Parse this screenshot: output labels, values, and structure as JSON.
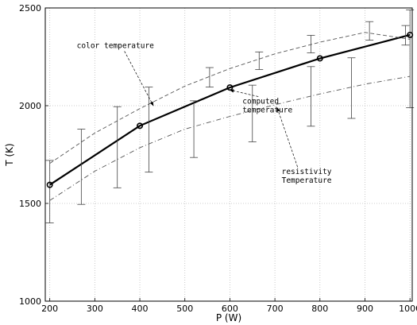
{
  "chart_data": {
    "type": "line",
    "title": "",
    "xlabel": "P (W)",
    "ylabel": "T (K)",
    "xlim": [
      190,
      1005
    ],
    "ylim": [
      1000,
      2500
    ],
    "xticks": [
      200,
      300,
      400,
      500,
      600,
      700,
      800,
      900,
      1000
    ],
    "yticks": [
      1000,
      1500,
      2000,
      2500
    ],
    "grid": true,
    "series": [
      {
        "name": "computed temperature",
        "style": "solid-thick-circles",
        "x": [
          200,
          400,
          600,
          800,
          1000
        ],
        "y": [
          1595,
          1897,
          2093,
          2242,
          2362
        ]
      },
      {
        "name": "color temperature",
        "style": "dashed",
        "x": [
          200,
          300,
          400,
          500,
          600,
          700,
          800,
          900,
          1000
        ],
        "y": [
          1705,
          1860,
          1985,
          2100,
          2190,
          2265,
          2325,
          2375,
          2340
        ]
      },
      {
        "name": "resistivity Temperature",
        "style": "dash-dot",
        "x": [
          200,
          300,
          400,
          500,
          600,
          700,
          800,
          900,
          1000
        ],
        "y": [
          1515,
          1665,
          1785,
          1880,
          1945,
          2005,
          2060,
          2110,
          2150
        ]
      }
    ],
    "error_bars": [
      {
        "x": 200,
        "low": 1400,
        "high": 1720
      },
      {
        "x": 270,
        "low": 1495,
        "high": 1880
      },
      {
        "x": 350,
        "low": 1580,
        "high": 1995
      },
      {
        "x": 420,
        "low": 1660,
        "high": 2095
      },
      {
        "x": 520,
        "low": 1735,
        "high": 2025
      },
      {
        "x": 555,
        "low": 2095,
        "high": 2195
      },
      {
        "x": 650,
        "low": 1815,
        "high": 2105
      },
      {
        "x": 665,
        "low": 2185,
        "high": 2275
      },
      {
        "x": 780,
        "low": 1895,
        "high": 2200
      },
      {
        "x": 780,
        "low": 2270,
        "high": 2360
      },
      {
        "x": 870,
        "low": 1935,
        "high": 2245
      },
      {
        "x": 910,
        "low": 2335,
        "high": 2430
      },
      {
        "x": 990,
        "low": 2310,
        "high": 2410
      },
      {
        "x": 1000,
        "low": 1990,
        "high": 2490
      }
    ],
    "annotations": [
      {
        "text": "color temperature",
        "lines": [
          "color temperature"
        ],
        "x": 260,
        "y": 2295,
        "arrow_to": [
          430,
          2000
        ]
      },
      {
        "text": "computed temperature",
        "lines": [
          "computed",
          "temperature"
        ],
        "x": 628,
        "y": 2010,
        "arrow_to": [
          600,
          2080
        ]
      },
      {
        "text": "resistivity Temperature",
        "lines": [
          "resistivity",
          "Temperature"
        ],
        "x": 715,
        "y": 1650,
        "arrow_to": [
          705,
          1990
        ]
      }
    ]
  }
}
